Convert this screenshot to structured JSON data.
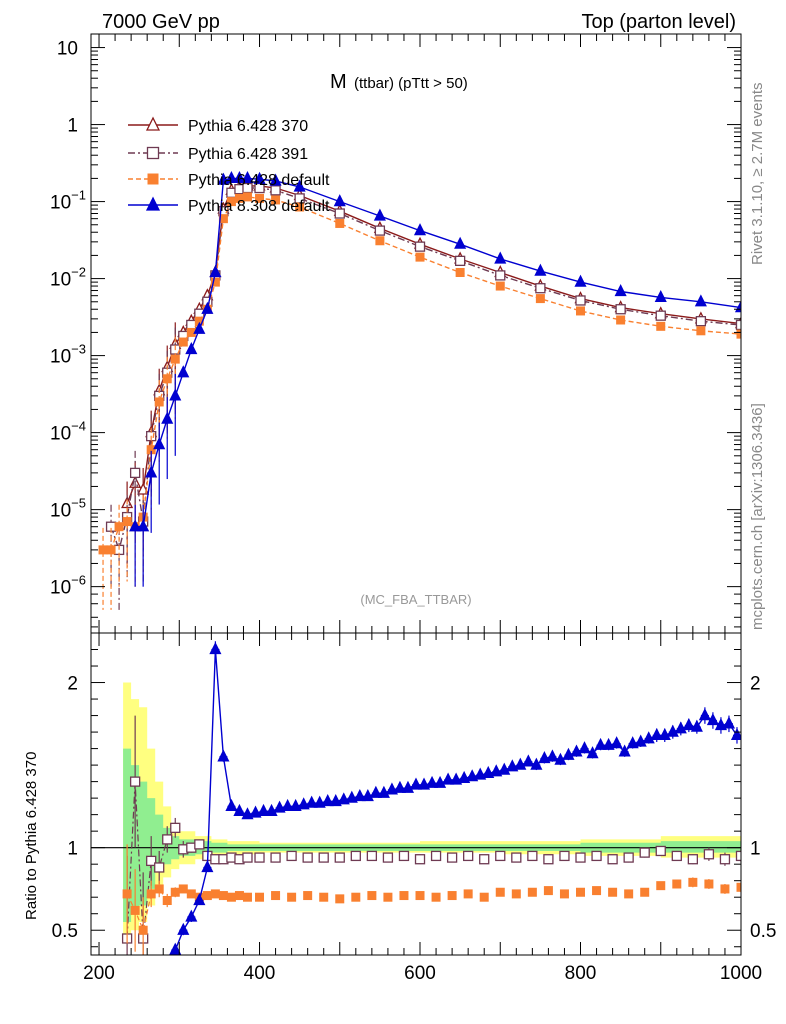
{
  "header": {
    "left": "7000 GeV pp",
    "right": "Top (parton level)"
  },
  "side_labels": {
    "right_top": "Rivet 3.1.10, ≥ 2.7M events",
    "right_bottom": "mcplots.cern.ch [arXiv:1306.3436]"
  },
  "colors": {
    "pythia6_370": "#8b1a1a",
    "pythia6_391": "#6e3a52",
    "pythia6_default": "#f98030",
    "pythia8_default": "#0000d0",
    "band_inner": "#90ee90",
    "band_outer": "#ffff80"
  },
  "chart_data": {
    "type": "line",
    "title_main": "M",
    "title_sub": "(ttbar) (pTtt > 50)",
    "watermark": "(MC_FBA_TTBAR)",
    "xlim": [
      190,
      1000
    ],
    "xticks": [
      "200",
      "400",
      "600",
      "800",
      "1000"
    ],
    "top_panel": {
      "yscale": "log",
      "ylim": [
        2.5e-07,
        15
      ],
      "yticks": [
        {
          "v": 10,
          "base": "10",
          "exp": ""
        },
        {
          "v": 1,
          "base": "1",
          "exp": ""
        },
        {
          "v": 0.1,
          "base": "10",
          "exp": "−1"
        },
        {
          "v": 0.01,
          "base": "10",
          "exp": "−2"
        },
        {
          "v": 0.001,
          "base": "10",
          "exp": "−3"
        },
        {
          "v": 0.0001,
          "base": "10",
          "exp": "−4"
        },
        {
          "v": 1e-05,
          "base": "10",
          "exp": "−5"
        },
        {
          "v": 1e-06,
          "base": "10",
          "exp": "−6"
        }
      ]
    },
    "ratio_panel": {
      "ylabel": "Ratio to Pythia 6.428 370",
      "ylim": [
        0.35,
        2.3
      ],
      "yticks": [
        "0.5",
        "1",
        "2"
      ],
      "band_x": [
        230,
        240,
        250,
        260,
        270,
        280,
        290,
        300,
        320,
        340,
        360,
        400,
        500,
        600,
        700,
        800,
        900,
        1000
      ],
      "band_inner": [
        [
          0.55,
          1.6
        ],
        [
          0.6,
          1.5
        ],
        [
          0.65,
          1.4
        ],
        [
          0.75,
          1.3
        ],
        [
          0.85,
          1.2
        ],
        [
          0.9,
          1.12
        ],
        [
          0.93,
          1.07
        ],
        [
          0.95,
          1.05
        ],
        [
          0.96,
          1.04
        ],
        [
          0.97,
          1.03
        ],
        [
          0.98,
          1.02
        ],
        [
          0.98,
          1.02
        ],
        [
          0.98,
          1.02
        ],
        [
          0.98,
          1.02
        ],
        [
          0.98,
          1.02
        ],
        [
          0.97,
          1.03
        ],
        [
          0.97,
          1.04
        ],
        [
          0.96,
          1.05
        ]
      ],
      "band_outer": [
        [
          0.45,
          2.0
        ],
        [
          0.5,
          1.9
        ],
        [
          0.55,
          1.85
        ],
        [
          0.65,
          1.6
        ],
        [
          0.75,
          1.4
        ],
        [
          0.82,
          1.25
        ],
        [
          0.87,
          1.15
        ],
        [
          0.9,
          1.1
        ],
        [
          0.93,
          1.07
        ],
        [
          0.95,
          1.05
        ],
        [
          0.96,
          1.04
        ],
        [
          0.97,
          1.03
        ],
        [
          0.97,
          1.03
        ],
        [
          0.97,
          1.04
        ],
        [
          0.96,
          1.04
        ],
        [
          0.95,
          1.05
        ],
        [
          0.94,
          1.07
        ],
        [
          0.93,
          1.1
        ]
      ]
    },
    "series": [
      {
        "name": "Pythia 6.428 370",
        "key": "p6_370",
        "marker": "triangle-open",
        "dash": "",
        "top_x": [
          235,
          245,
          255,
          265,
          275,
          285,
          295,
          305,
          315,
          325,
          335,
          345,
          355,
          365,
          375,
          385,
          400,
          420,
          450,
          500,
          550,
          600,
          650,
          700,
          750,
          800,
          850,
          900,
          950,
          1000
        ],
        "top_y": [
          1.2e-05,
          2.2e-05,
          1.8e-05,
          0.0001,
          0.00035,
          0.0007,
          0.0014,
          0.002,
          0.0028,
          0.004,
          0.006,
          0.012,
          0.08,
          0.14,
          0.155,
          0.16,
          0.16,
          0.15,
          0.12,
          0.075,
          0.045,
          0.028,
          0.018,
          0.012,
          0.008,
          0.0055,
          0.0042,
          0.0035,
          0.003,
          0.0026
        ],
        "ratio_x": [],
        "ratio_y": []
      },
      {
        "name": "Pythia 6.428 391",
        "key": "p6_391",
        "marker": "square-open",
        "dash": "7,3,2,3",
        "top_x": [
          215,
          225,
          235,
          245,
          255,
          265,
          275,
          285,
          295,
          305,
          315,
          325,
          335,
          345,
          355,
          365,
          375,
          385,
          400,
          420,
          450,
          500,
          550,
          600,
          650,
          700,
          750,
          800,
          850,
          900,
          950,
          1000
        ],
        "top_y": [
          6e-06,
          3e-06,
          8e-06,
          3e-05,
          7e-06,
          9e-05,
          0.0003,
          0.0006,
          0.0012,
          0.0018,
          0.0025,
          0.0035,
          0.005,
          0.011,
          0.075,
          0.13,
          0.145,
          0.15,
          0.15,
          0.14,
          0.11,
          0.07,
          0.042,
          0.026,
          0.017,
          0.011,
          0.0075,
          0.0052,
          0.004,
          0.0033,
          0.0028,
          0.0025
        ],
        "ratio_x": [
          235,
          245,
          255,
          265,
          275,
          285,
          295,
          305,
          315,
          325,
          335,
          345,
          355,
          365,
          375,
          385,
          400,
          420,
          440,
          460,
          480,
          500,
          520,
          540,
          560,
          580,
          600,
          620,
          640,
          660,
          680,
          700,
          720,
          740,
          760,
          780,
          800,
          820,
          840,
          860,
          880,
          900,
          920,
          940,
          960,
          980,
          1000
        ],
        "ratio_y": [
          0.45,
          1.4,
          0.45,
          0.92,
          0.88,
          1.05,
          1.12,
          0.99,
          1.0,
          1.02,
          0.95,
          0.93,
          0.93,
          0.94,
          0.93,
          0.94,
          0.94,
          0.94,
          0.95,
          0.94,
          0.94,
          0.94,
          0.95,
          0.95,
          0.94,
          0.95,
          0.93,
          0.95,
          0.94,
          0.95,
          0.93,
          0.95,
          0.94,
          0.95,
          0.93,
          0.95,
          0.94,
          0.95,
          0.93,
          0.94,
          0.97,
          0.98,
          0.95,
          0.93,
          0.96,
          0.93,
          0.95
        ],
        "ratio_xerr": 0,
        "ratio_err": [
          0.5,
          0.4,
          0.4,
          0.15,
          0.1,
          0.08,
          0.06,
          0.05,
          0.03,
          0.02,
          0.02,
          0.02,
          0.02,
          0.02,
          0.02,
          0.02,
          0.02,
          0.02,
          0.02,
          0.02,
          0.02,
          0.02,
          0.02,
          0.02,
          0.02,
          0.02,
          0.02,
          0.02,
          0.02,
          0.02,
          0.02,
          0.02,
          0.02,
          0.02,
          0.02,
          0.02,
          0.02,
          0.02,
          0.02,
          0.03,
          0.03,
          0.03,
          0.03,
          0.03,
          0.04,
          0.04,
          0.04
        ]
      },
      {
        "name": "Pythia 6.428 default",
        "key": "p6_def",
        "marker": "square-filled",
        "dash": "5,3",
        "top_x": [
          205,
          215,
          225,
          235,
          245,
          255,
          265,
          275,
          285,
          295,
          305,
          315,
          325,
          335,
          345,
          355,
          365,
          375,
          385,
          400,
          420,
          450,
          500,
          550,
          600,
          650,
          700,
          750,
          800,
          850,
          900,
          950,
          1000
        ],
        "top_y": [
          3e-06,
          3e-06,
          6e-06,
          7e-06,
          6e-06,
          8e-06,
          6e-05,
          0.00025,
          0.0005,
          0.0009,
          0.0015,
          0.002,
          0.0028,
          0.004,
          0.009,
          0.06,
          0.1,
          0.11,
          0.115,
          0.11,
          0.105,
          0.085,
          0.052,
          0.031,
          0.019,
          0.012,
          0.008,
          0.0055,
          0.0038,
          0.0029,
          0.0024,
          0.0021,
          0.0019
        ],
        "ratio_x": [
          235,
          245,
          255,
          265,
          275,
          285,
          295,
          305,
          315,
          325,
          335,
          345,
          355,
          365,
          375,
          385,
          400,
          420,
          440,
          460,
          480,
          500,
          520,
          540,
          560,
          580,
          600,
          620,
          640,
          660,
          680,
          700,
          720,
          740,
          760,
          780,
          800,
          820,
          840,
          860,
          880,
          900,
          920,
          940,
          960,
          980,
          1000
        ],
        "ratio_y": [
          0.72,
          0.62,
          0.5,
          0.72,
          0.75,
          0.68,
          0.73,
          0.75,
          0.72,
          0.7,
          0.71,
          0.72,
          0.71,
          0.7,
          0.71,
          0.7,
          0.7,
          0.71,
          0.7,
          0.71,
          0.7,
          0.69,
          0.7,
          0.71,
          0.7,
          0.71,
          0.71,
          0.7,
          0.71,
          0.72,
          0.7,
          0.73,
          0.72,
          0.73,
          0.74,
          0.72,
          0.73,
          0.74,
          0.73,
          0.72,
          0.73,
          0.77,
          0.78,
          0.79,
          0.78,
          0.75,
          0.76
        ],
        "ratio_xerr": 0,
        "ratio_err": [
          0.3,
          0.25,
          0.2,
          0.08,
          0.05,
          0.04,
          0.03,
          0.02,
          0.02,
          0.01,
          0.01,
          0.01,
          0.01,
          0.01,
          0.01,
          0.01,
          0.01,
          0.01,
          0.01,
          0.01,
          0.01,
          0.01,
          0.01,
          0.01,
          0.01,
          0.01,
          0.01,
          0.01,
          0.01,
          0.01,
          0.01,
          0.01,
          0.01,
          0.02,
          0.02,
          0.02,
          0.02,
          0.02,
          0.02,
          0.02,
          0.02,
          0.02,
          0.02,
          0.03,
          0.03,
          0.03,
          0.03
        ]
      },
      {
        "name": "Pythia 8.308 default",
        "key": "p8_def",
        "marker": "triangle-filled",
        "dash": "",
        "top_x": [
          245,
          255,
          265,
          275,
          285,
          295,
          305,
          315,
          325,
          335,
          345,
          355,
          365,
          375,
          385,
          400,
          420,
          450,
          500,
          550,
          600,
          650,
          700,
          750,
          800,
          850,
          900,
          950,
          1000
        ],
        "top_y": [
          6e-06,
          6e-06,
          3e-05,
          7e-05,
          0.00015,
          0.0003,
          0.0006,
          0.0012,
          0.0022,
          0.004,
          0.012,
          0.19,
          0.2,
          0.2,
          0.2,
          0.195,
          0.185,
          0.155,
          0.1,
          0.065,
          0.042,
          0.028,
          0.018,
          0.0125,
          0.009,
          0.0068,
          0.0057,
          0.005,
          0.0042
        ],
        "ratio_x": [
          295,
          305,
          315,
          325,
          335,
          345,
          355,
          365,
          375,
          385,
          395,
          405,
          415,
          425,
          435,
          445,
          455,
          465,
          475,
          485,
          495,
          505,
          515,
          525,
          535,
          545,
          555,
          565,
          575,
          585,
          595,
          605,
          615,
          625,
          635,
          645,
          655,
          665,
          675,
          685,
          695,
          705,
          715,
          725,
          735,
          745,
          755,
          765,
          775,
          785,
          795,
          805,
          815,
          825,
          835,
          845,
          855,
          865,
          875,
          885,
          895,
          905,
          915,
          925,
          935,
          945,
          955,
          965,
          975,
          985,
          995
        ],
        "ratio_y": [
          0.38,
          0.5,
          0.58,
          0.68,
          0.88,
          2.2,
          1.55,
          1.25,
          1.22,
          1.2,
          1.21,
          1.22,
          1.22,
          1.24,
          1.25,
          1.25,
          1.26,
          1.27,
          1.27,
          1.28,
          1.28,
          1.29,
          1.3,
          1.31,
          1.31,
          1.33,
          1.33,
          1.35,
          1.36,
          1.36,
          1.38,
          1.38,
          1.39,
          1.39,
          1.41,
          1.41,
          1.42,
          1.43,
          1.44,
          1.45,
          1.46,
          1.47,
          1.49,
          1.5,
          1.52,
          1.5,
          1.54,
          1.55,
          1.53,
          1.56,
          1.58,
          1.6,
          1.57,
          1.62,
          1.62,
          1.63,
          1.58,
          1.63,
          1.64,
          1.66,
          1.68,
          1.68,
          1.7,
          1.72,
          1.74,
          1.73,
          1.8,
          1.77,
          1.74,
          1.75,
          1.68
        ],
        "ratio_xerr": 5,
        "ratio_err": [
          0.03,
          0.03,
          0.03,
          0.02,
          0.02,
          0.05,
          0.03,
          0.02,
          0.02,
          0.02,
          0.02,
          0.02,
          0.02,
          0.02,
          0.02,
          0.02,
          0.02,
          0.02,
          0.02,
          0.02,
          0.02,
          0.02,
          0.02,
          0.02,
          0.02,
          0.02,
          0.02,
          0.02,
          0.02,
          0.02,
          0.02,
          0.02,
          0.02,
          0.02,
          0.02,
          0.02,
          0.02,
          0.02,
          0.02,
          0.02,
          0.02,
          0.02,
          0.02,
          0.02,
          0.02,
          0.03,
          0.03,
          0.03,
          0.03,
          0.03,
          0.03,
          0.03,
          0.03,
          0.03,
          0.03,
          0.03,
          0.03,
          0.03,
          0.03,
          0.03,
          0.04,
          0.04,
          0.04,
          0.04,
          0.04,
          0.04,
          0.05,
          0.05,
          0.05,
          0.05,
          0.05
        ]
      }
    ]
  }
}
